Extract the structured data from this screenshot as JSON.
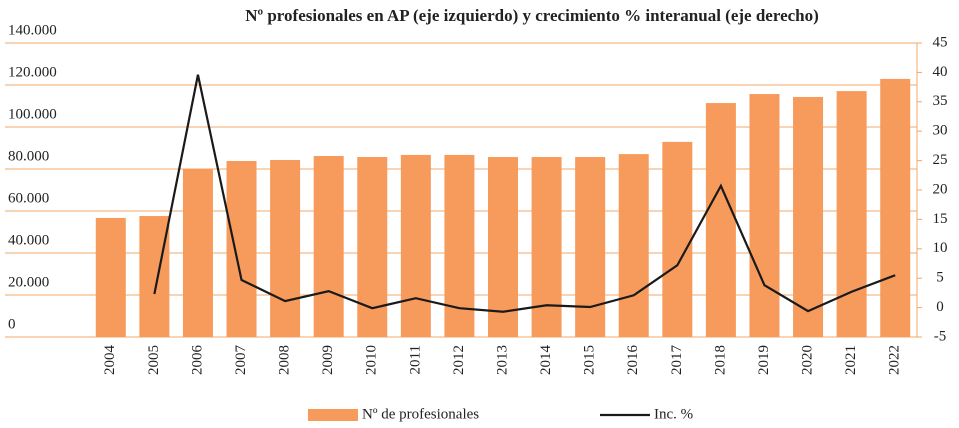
{
  "chart_data": {
    "type": "bar",
    "title": "Nº profesionales en AP (eje izquierdo) y crecimiento % interanual (eje derecho)",
    "categories": [
      "2004",
      "2005",
      "2006",
      "2007",
      "2008",
      "2009",
      "2010",
      "2011",
      "2012",
      "2013",
      "2014",
      "2015",
      "2016",
      "2017",
      "2018",
      "2019",
      "2020",
      "2021",
      "2022"
    ],
    "series": [
      {
        "name": "Nº de profesionales",
        "type": "bar",
        "color": "#f79b5c",
        "values": [
          56700,
          57600,
          80000,
          83800,
          84300,
          86200,
          85700,
          86700,
          86700,
          85700,
          85700,
          85700,
          87100,
          92900,
          111400,
          115700,
          114300,
          117100,
          122900
        ]
      },
      {
        "name": "Inc. %",
        "type": "line",
        "axis": "y2",
        "color": "#1a1a1a",
        "values": [
          null,
          2.3,
          39.6,
          4.7,
          1.1,
          2.8,
          -0.1,
          1.6,
          -0.1,
          -0.7,
          0.4,
          0.1,
          2.1,
          7.2,
          20.7,
          3.8,
          -0.6,
          2.7,
          5.5
        ]
      }
    ],
    "ylim": [
      0,
      140000
    ],
    "yticks": [
      0,
      {
        "value": 20000,
        "label": "20.000"
      },
      {
        "value": 40000,
        "label": "40.000"
      },
      {
        "value": 60000,
        "label": "60.000"
      },
      {
        "value": 80000,
        "label": "80.000"
      },
      {
        "value": 100000,
        "label": "100.000"
      },
      {
        "value": 120000,
        "label": "120.000"
      },
      {
        "value": 140000,
        "label": "140.000"
      }
    ],
    "y2lim": [
      -5,
      45
    ],
    "y2ticks": [
      -5,
      0,
      5,
      10,
      15,
      20,
      25,
      30,
      35,
      40,
      45
    ],
    "grid": true
  }
}
